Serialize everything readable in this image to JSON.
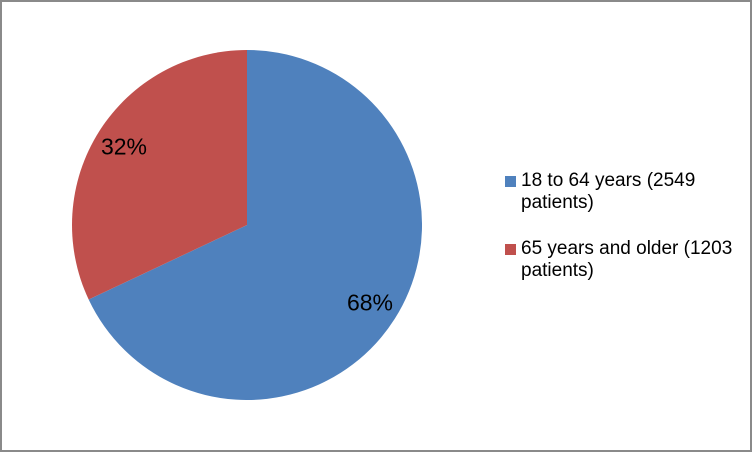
{
  "chart_data": {
    "type": "pie",
    "legend_position": "right",
    "start_angle_deg": 0,
    "direction": "clockwise",
    "slices": [
      {
        "legend_label": "18 to 64 years (2549 patients)",
        "value_percent": 68,
        "patients": 2549,
        "pct_label": "68%",
        "color": "#4F81BD"
      },
      {
        "legend_label": "65 years and older (1203 patients)",
        "value_percent": 32,
        "patients": 1203,
        "pct_label": "32%",
        "color": "#C0504D"
      }
    ]
  },
  "frame": {
    "border_color": "#8A8A8A",
    "background": "#FFFFFF"
  }
}
